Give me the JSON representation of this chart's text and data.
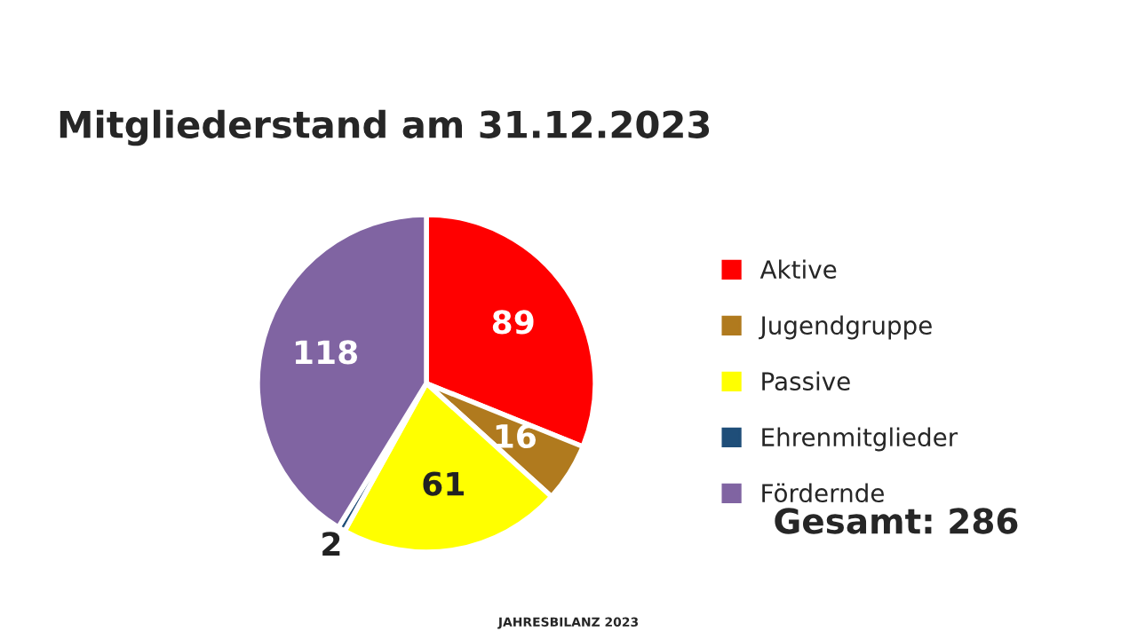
{
  "chart_data": {
    "type": "pie",
    "title": "Mitgliederstand am 31.12.2023",
    "categories": [
      "Aktive",
      "Jugendgruppe",
      "Passive",
      "Ehrenmitglieder",
      "Fördernde"
    ],
    "values": [
      89,
      16,
      61,
      2,
      118
    ],
    "colors": [
      "#ff0000",
      "#b07a1e",
      "#ffff00",
      "#1f4e79",
      "#8064a2"
    ],
    "data_labels": true,
    "legend": "right",
    "annotations": [
      "Gesamt: 286",
      "JAHRESBILANZ 2023"
    ]
  }
}
